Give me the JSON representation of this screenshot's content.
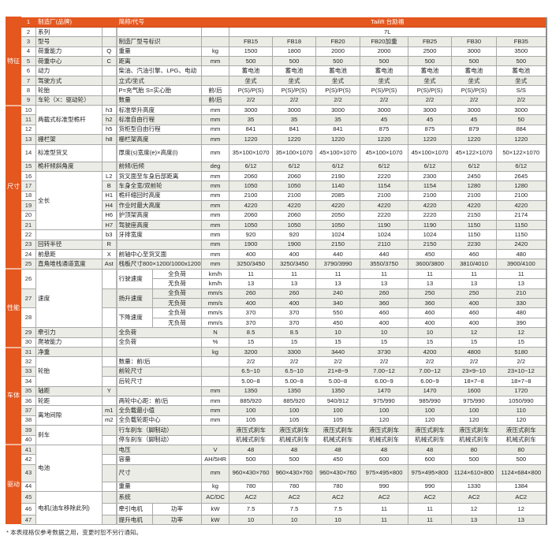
{
  "colors": {
    "accent": "#e4571f",
    "stripe": "#ececE6"
  },
  "sections": [
    {
      "label": "特征",
      "items": [
        {
          "no": "1",
          "name": "制造厂(品牌)",
          "sym": "",
          "desc": "简称/代号",
          "unit": "",
          "values": [
            "Tailift 台励福"
          ]
        },
        {
          "no": "2",
          "name": "系列",
          "sym": "",
          "desc": "",
          "unit": "",
          "values": [
            "7L"
          ]
        },
        {
          "no": "3",
          "name": "型号",
          "sym": "",
          "desc": "制造厂型号标识",
          "unit": "",
          "values": [
            "FB15",
            "FB18",
            "FB20",
            "FB20加重",
            "FB25",
            "FB30",
            "FB35"
          ]
        },
        {
          "no": "4",
          "name": "荷重能力",
          "sym": "Q",
          "desc": "重量",
          "unit": "kg",
          "values": [
            "1500",
            "1800",
            "2000",
            "2000",
            "2500",
            "3000",
            "3500"
          ]
        },
        {
          "no": "5",
          "name": "荷重中心",
          "sym": "C",
          "desc": "距离",
          "unit": "mm",
          "values": [
            "500",
            "500",
            "500",
            "500",
            "500",
            "500",
            "500"
          ]
        },
        {
          "no": "6",
          "name": "动力",
          "sym": "",
          "desc": "柴油、汽油引擎、LPG、电动",
          "unit": "",
          "values": [
            "蓄电池",
            "蓄电池",
            "蓄电池",
            "蓄电池",
            "蓄电池",
            "蓄电池",
            "蓄电池"
          ]
        },
        {
          "no": "7",
          "name": "驾驶方式",
          "sym": "",
          "desc": "立式/坐式",
          "unit": "",
          "values": [
            "坐式",
            "坐式",
            "坐式",
            "坐式",
            "坐式",
            "坐式",
            "坐式"
          ]
        },
        {
          "no": "8",
          "name": "轮胎",
          "sym": "",
          "desc": "P=充气胎 S=实心胎",
          "unit": "前/后",
          "values": [
            "P(S)/P(S)",
            "P(S)/P(S)",
            "P(S)/P(S)",
            "P(S)/P(S)",
            "P(S)/P(S)",
            "P(S)/P(S)",
            "S/S"
          ]
        },
        {
          "no": "9",
          "name": "车轮（X：驱动轮）",
          "sym": "",
          "desc": "数量",
          "unit": "前/后",
          "values": [
            "2/2",
            "2/2",
            "2/2",
            "2/2",
            "2/2",
            "2/2",
            "2/2"
          ]
        }
      ]
    },
    {
      "label": "尺寸",
      "items": [
        {
          "name": "两截式标准型桅杆",
          "rows": [
            {
              "no": "10",
              "sym": "h3",
              "desc": "标准举升高度",
              "unit": "mm",
              "values": [
                "3000",
                "3000",
                "3000",
                "3000",
                "3000",
                "3000",
                "3000"
              ]
            },
            {
              "no": "11",
              "sym": "h2",
              "desc": "标准自由行程",
              "unit": "mm",
              "values": [
                "35",
                "35",
                "35",
                "45",
                "45",
                "45",
                "50"
              ]
            },
            {
              "no": "12",
              "sym": "h5",
              "desc": "货柜型自由行程",
              "unit": "mm",
              "values": [
                "841",
                "841",
                "841",
                "875",
                "875",
                "879",
                "884"
              ]
            }
          ]
        },
        {
          "no": "13",
          "name": "栅栏架",
          "sym": "h8",
          "desc": "栅栏架高度",
          "unit": "mm",
          "values": [
            "1220",
            "1220",
            "1220",
            "1220",
            "1220",
            "1220",
            "1220"
          ]
        },
        {
          "no": "14",
          "name": "标准型货叉",
          "sym": "",
          "desc": "厚度(s)宽度(e)×高度(l)",
          "unit": "mm",
          "values": [
            "35×100×1070",
            "35×100×1070",
            "45×100×1070",
            "45×100×1070",
            "45×100×1070",
            "45×122×1070",
            "50×122×1070"
          ]
        },
        {
          "no": "15",
          "name": "桅杆倾斜角度",
          "sym": "",
          "desc": "前倾/后倾",
          "unit": "deg",
          "values": [
            "6/12",
            "6/12",
            "6/12",
            "6/12",
            "6/12",
            "6/12",
            "6/12"
          ]
        },
        {
          "name": "全长",
          "rows": [
            {
              "no": "16",
              "sym": "L2",
              "desc": "货叉面至车身后部距离",
              "unit": "mm",
              "values": [
                "2060",
                "2060",
                "2190",
                "2220",
                "2300",
                "2450",
                "2645"
              ]
            },
            {
              "no": "17",
              "sym": "B",
              "desc": "车身全宽/双前轮",
              "unit": "mm",
              "values": [
                "1050",
                "1050",
                "1140",
                "1154",
                "1154",
                "1280",
                "1280"
              ]
            },
            {
              "no": "18",
              "sym": "H1",
              "desc": "桅杆缩回时高度",
              "unit": "mm",
              "values": [
                "2100",
                "2100",
                "2085",
                "2100",
                "2100",
                "2100",
                "2100"
              ]
            },
            {
              "no": "19",
              "sym": "H4",
              "desc": "作业时最大高度",
              "unit": "mm",
              "values": [
                "4220",
                "4220",
                "4220",
                "4220",
                "4220",
                "4220",
                "4220"
              ]
            },
            {
              "no": "20",
              "sym": "H6",
              "desc": "护顶架高度",
              "unit": "mm",
              "values": [
                "2060",
                "2060",
                "2050",
                "2220",
                "2220",
                "2150",
                "2174"
              ]
            },
            {
              "no": "21",
              "sym": "H7",
              "desc": "驾驶座高度",
              "unit": "mm",
              "values": [
                "1050",
                "1050",
                "1050",
                "1190",
                "1190",
                "1150",
                "1150"
              ]
            }
          ]
        },
        {
          "no": "22",
          "name": "",
          "sym": "b3",
          "desc": "牙排宽度",
          "unit": "mm",
          "values": [
            "920",
            "920",
            "1024",
            "1024",
            "1024",
            "1150",
            "1150"
          ]
        },
        {
          "no": "23",
          "name": "回转半径",
          "sym": "R",
          "desc": "",
          "unit": "mm",
          "values": [
            "1900",
            "1900",
            "2150",
            "2110",
            "2150",
            "2230",
            "2420"
          ]
        },
        {
          "no": "24",
          "name": "前悬距",
          "sym": "X",
          "desc": "前轴中心至货叉面",
          "unit": "mm",
          "values": [
            "400",
            "400",
            "440",
            "440",
            "450",
            "460",
            "480"
          ]
        },
        {
          "no": "25",
          "name": "直角堆栈通道宽度",
          "sym": "Ast",
          "desc": "栈板尺寸800×1200/1000x1200",
          "unit": "mm",
          "values": [
            "3250/3450",
            "3250/3450",
            "3790/3990",
            "3550/3750",
            "3600/3800",
            "3810/4010",
            "3900/4100"
          ]
        }
      ]
    },
    {
      "label": "性能",
      "items": [
        {
          "name": "速度",
          "rows": [
            {
              "no": "26",
              "sym": "",
              "desc": "行驶速度",
              "sub": [
                {
                  "load": "全负荷",
                  "unit": "km/h",
                  "values": [
                    "11",
                    "11",
                    "11",
                    "11",
                    "11",
                    "11",
                    "11"
                  ]
                },
                {
                  "load": "无负荷",
                  "unit": "km/h",
                  "values": [
                    "13",
                    "13",
                    "13",
                    "13",
                    "13",
                    "13",
                    "13"
                  ]
                }
              ]
            },
            {
              "no": "27",
              "sym": "",
              "desc": "扬升速度",
              "sub": [
                {
                  "load": "全负荷",
                  "unit": "mm/s",
                  "values": [
                    "260",
                    "260",
                    "240",
                    "260",
                    "250",
                    "250",
                    "210"
                  ]
                },
                {
                  "load": "无负荷",
                  "unit": "mm/s",
                  "values": [
                    "400",
                    "400",
                    "340",
                    "360",
                    "360",
                    "400",
                    "330"
                  ]
                }
              ]
            },
            {
              "no": "28",
              "sym": "",
              "desc": "下降速度",
              "sub": [
                {
                  "load": "全负荷",
                  "unit": "mm/s",
                  "values": [
                    "370",
                    "370",
                    "550",
                    "460",
                    "460",
                    "460",
                    "480"
                  ]
                },
                {
                  "load": "无负荷",
                  "unit": "mm/s",
                  "values": [
                    "370",
                    "370",
                    "450",
                    "400",
                    "400",
                    "400",
                    "390"
                  ]
                }
              ]
            }
          ]
        },
        {
          "no": "29",
          "name": "牵引力",
          "sym": "",
          "desc": "全负荷",
          "unit": "N",
          "values": [
            "8.5",
            "8.5",
            "10",
            "10",
            "10",
            "12",
            "12"
          ]
        },
        {
          "no": "30",
          "name": "爬坡能力",
          "sym": "",
          "desc": "全负荷",
          "unit": "%",
          "values": [
            "15",
            "15",
            "15",
            "15",
            "15",
            "15",
            "15"
          ]
        }
      ]
    },
    {
      "label": "车体",
      "items": [
        {
          "no": "31",
          "name": "净重",
          "sym": "",
          "desc": "",
          "unit": "kg",
          "values": [
            "3200",
            "3300",
            "3440",
            "3730",
            "4200",
            "4800",
            "5180"
          ]
        },
        {
          "name": "轮胎",
          "rows": [
            {
              "no": "32",
              "sym": "",
              "desc": "数量：前/后",
              "unit": "",
              "values": [
                "2/2",
                "2/2",
                "2/2",
                "2/2",
                "2/2",
                "2/2",
                "2/2"
              ]
            },
            {
              "no": "33",
              "sym": "",
              "desc": "前轮尺寸",
              "unit": "",
              "values": [
                "6.5−10",
                "6.5−10",
                "21×8−9",
                "7.00−12",
                "7.00−12",
                "23×9−10",
                "23×10−12"
              ]
            },
            {
              "no": "34",
              "sym": "",
              "desc": "后轮尺寸",
              "unit": "",
              "values": [
                "5.00−8",
                "5.00−8",
                "5.00−8",
                "6.00−9",
                "6.00−9",
                "18×7−8",
                "18×7−8"
              ]
            }
          ]
        },
        {
          "no": "35",
          "name": "轴距",
          "sym": "Y",
          "desc": "",
          "unit": "mm",
          "values": [
            "1350",
            "1350",
            "1350",
            "1470",
            "1470",
            "1600",
            "1720"
          ]
        },
        {
          "no": "36",
          "name": "轮距",
          "sym": "",
          "desc": "两轮中心距：前/后",
          "unit": "mm",
          "values": [
            "885/920",
            "885/920",
            "940/912",
            "975/990",
            "985/990",
            "975/990",
            "1050/990"
          ]
        },
        {
          "name": "离地间隙",
          "rows": [
            {
              "no": "37",
              "sym": "m1",
              "desc": "全负载最小值",
              "unit": "mm",
              "values": [
                "100",
                "100",
                "100",
                "100",
                "100",
                "100",
                "110"
              ]
            },
            {
              "no": "38",
              "sym": "m2",
              "desc": "全负载轮距中心",
              "unit": "mm",
              "values": [
                "105",
                "105",
                "105",
                "120",
                "120",
                "120",
                "120"
              ]
            }
          ]
        },
        {
          "name": "刹车",
          "rows": [
            {
              "no": "39",
              "sym": "",
              "desc": "行车刹车（脚制动）",
              "unit": "",
              "values": [
                "液压式刹车",
                "液压式刹车",
                "液压式刹车",
                "液压式刹车",
                "液压式刹车",
                "液压式刹车",
                "液压式刹车"
              ]
            },
            {
              "no": "40",
              "sym": "",
              "desc": "停车刹车（脚制动）",
              "unit": "",
              "values": [
                "机械式刹车",
                "机械式刹车",
                "机械式刹车",
                "机械式刹车",
                "机械式刹车",
                "机械式刹车",
                "机械式刹车"
              ]
            }
          ]
        }
      ]
    },
    {
      "label": "驱动",
      "items": [
        {
          "name": "电池",
          "rows": [
            {
              "no": "41",
              "sym": "",
              "desc": "电压",
              "unit": "V",
              "values": [
                "48",
                "48",
                "48",
                "48",
                "48",
                "80",
                "80"
              ]
            },
            {
              "no": "42",
              "sym": "",
              "desc": "容量",
              "unit": "AH/5HR",
              "values": [
                "500",
                "500",
                "450",
                "600",
                "600",
                "500",
                "500"
              ]
            },
            {
              "no": "43",
              "sym": "",
              "desc": "尺寸",
              "unit": "mm",
              "values": [
                "960×430×760",
                "960×430×760",
                "960×430×760",
                "975×495×800",
                "975×495×800",
                "1124×610×800",
                "1124×684×800"
              ]
            },
            {
              "no": "44",
              "sym": "",
              "desc": "重量",
              "unit": "kg",
              "values": [
                "780",
                "780",
                "780",
                "990",
                "990",
                "1330",
                "1384"
              ]
            }
          ]
        },
        {
          "name": "电机(油车移除此列)",
          "rows": [
            {
              "no": "45",
              "sym": "",
              "desc": "系统",
              "unit": "AC/DC",
              "values": [
                "AC2",
                "AC2",
                "AC2",
                "AC2",
                "AC2",
                "AC2",
                "AC2"
              ]
            },
            {
              "no": "46",
              "sym": "",
              "desc": "牵引电机",
              "load": "功率",
              "unit": "kW",
              "values": [
                "7.5",
                "7.5",
                "7.5",
                "11",
                "11",
                "12",
                "12"
              ]
            },
            {
              "no": "47",
              "sym": "",
              "desc": "提升电机",
              "load": "功率",
              "unit": "kW",
              "values": [
                "10",
                "10",
                "10",
                "11",
                "11",
                "13",
                "13"
              ]
            }
          ]
        }
      ]
    }
  ],
  "footnote": "* 本表规格仅参考数据之用，变更时恕不另行通知。"
}
